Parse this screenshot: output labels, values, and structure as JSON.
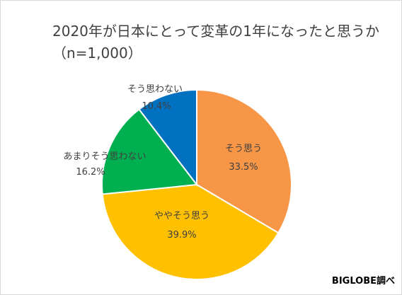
{
  "chart_data": {
    "type": "pie",
    "title": "2020年が日本にとって変革の1年になったと思うか",
    "subtitle": "（n=1,000）",
    "slices": [
      {
        "label": "そう思う",
        "value": 33.5,
        "display": "33.5%",
        "color": "#F79646"
      },
      {
        "label": "ややそう思う",
        "value": 39.9,
        "display": "39.9%",
        "color": "#FFC000"
      },
      {
        "label": "あまりそう思わない",
        "value": 16.2,
        "display": "16.2%",
        "color": "#00B050"
      },
      {
        "label": "そう思わない",
        "value": 10.4,
        "display": "10.4%",
        "color": "#0070C0"
      }
    ],
    "start": "12 o'clock",
    "direction": "clockwise",
    "legend": "none"
  },
  "source": "BIGLOBE調べ"
}
